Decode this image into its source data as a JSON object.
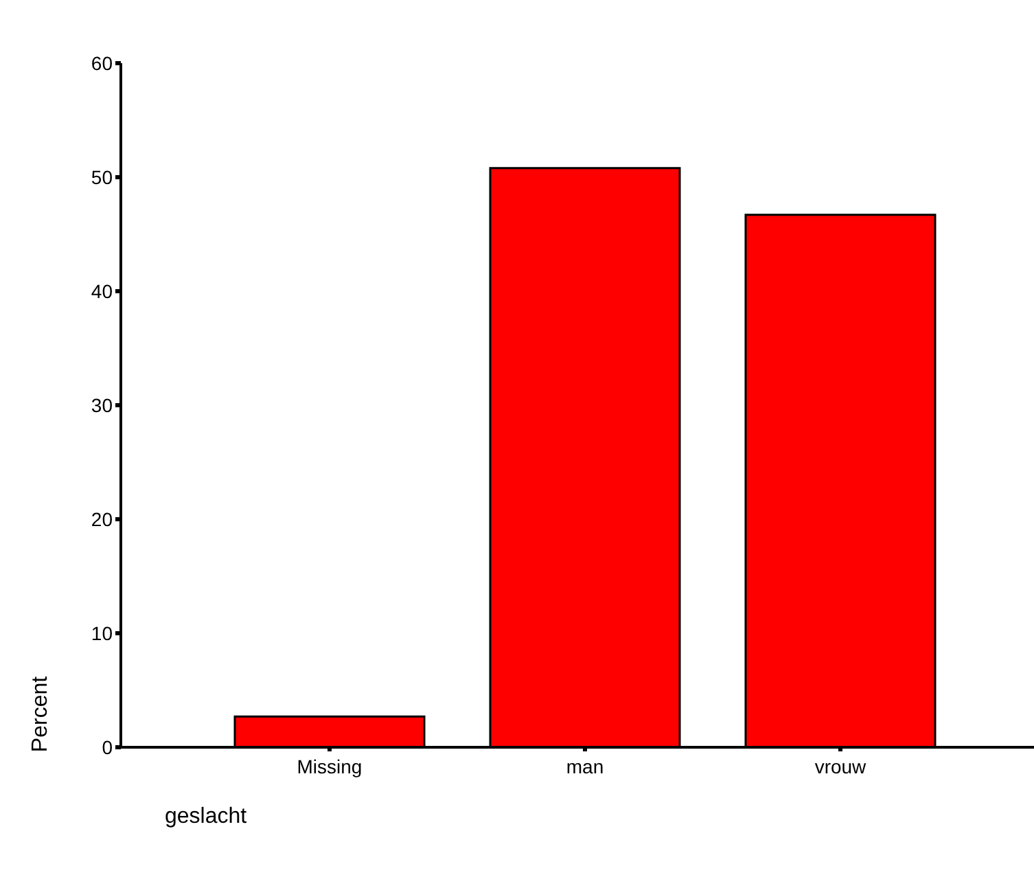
{
  "chart_data": {
    "type": "bar",
    "xlabel": "geslacht",
    "ylabel": "Percent",
    "categories": [
      "Missing",
      "man",
      "vrouw"
    ],
    "values": [
      2.7,
      50.8,
      46.7
    ],
    "color": "#ff0000",
    "ylim": [
      0,
      60
    ],
    "yticks": [
      0,
      10,
      20,
      30,
      40,
      50,
      60
    ],
    "grid": false,
    "legend": false
  }
}
